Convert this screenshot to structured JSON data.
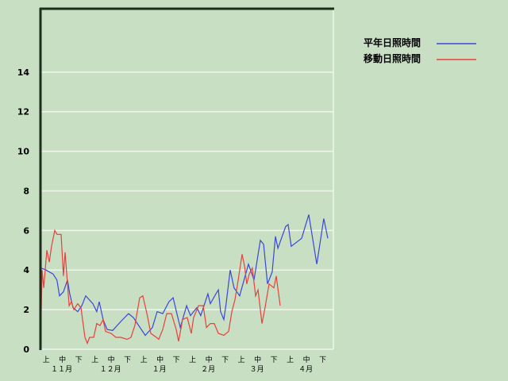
{
  "chart_data": {
    "type": "line",
    "title": "",
    "xlabel": "",
    "ylabel": "",
    "xlim": [
      0,
      18
    ],
    "ylim": [
      0,
      17.2
    ],
    "yticks": [
      0,
      2,
      4,
      6,
      8,
      10,
      12,
      14
    ],
    "grid": true,
    "legend_position": "top-right",
    "x_dekad_labels": [
      "上",
      "中",
      "下",
      "上",
      "中",
      "下",
      "上",
      "中",
      "下",
      "上",
      "中",
      "下",
      "上",
      "中",
      "下",
      "上",
      "中",
      "下"
    ],
    "x_month_labels": [
      "１１月",
      "１２月",
      "１月",
      "２月",
      "３月",
      "４月"
    ],
    "series": [
      {
        "name": "平年日照時間",
        "color": "#3a46d8",
        "x": [
          0.03,
          0.34,
          0.77,
          1.01,
          1.17,
          1.41,
          1.66,
          1.8,
          2.0,
          2.29,
          2.54,
          2.78,
          3.22,
          3.46,
          3.61,
          3.85,
          4.1,
          4.44,
          4.93,
          5.41,
          5.71,
          5.95,
          6.44,
          6.88,
          7.17,
          7.51,
          7.9,
          8.15,
          8.59,
          8.98,
          9.22,
          9.61,
          9.85,
          10.29,
          10.44,
          10.78,
          10.93,
          11.07,
          11.27,
          11.41,
          11.66,
          11.9,
          12.24,
          12.78,
          13.12,
          13.51,
          13.71,
          13.95,
          14.24,
          14.44,
          14.59,
          15.07,
          15.22,
          15.41,
          16.05,
          16.49,
          16.98,
          17.41,
          17.66
        ],
        "y": [
          4.1,
          4.0,
          3.8,
          3.5,
          2.7,
          2.9,
          3.5,
          2.8,
          2.1,
          1.9,
          2.2,
          2.7,
          2.3,
          1.9,
          2.4,
          1.5,
          1.0,
          0.95,
          1.4,
          1.8,
          1.6,
          1.3,
          0.7,
          1.1,
          1.9,
          1.8,
          2.4,
          2.6,
          1.1,
          2.2,
          1.7,
          2.1,
          1.7,
          2.8,
          2.3,
          2.8,
          3.0,
          1.9,
          1.5,
          2.3,
          4.0,
          3.1,
          2.7,
          4.3,
          3.5,
          5.5,
          5.3,
          3.3,
          3.9,
          5.7,
          5.1,
          6.2,
          6.3,
          5.2,
          5.6,
          6.8,
          4.3,
          6.6,
          5.6
        ]
      },
      {
        "name": "移動日照時間",
        "color": "#e8403a",
        "x": [
          0,
          0.1,
          0.2,
          0.39,
          0.54,
          0.68,
          0.88,
          1.02,
          1.27,
          1.41,
          1.51,
          1.76,
          1.9,
          2.05,
          2.29,
          2.49,
          2.73,
          2.88,
          3.02,
          3.27,
          3.46,
          3.66,
          3.85,
          4.0,
          4.34,
          4.63,
          4.93,
          5.32,
          5.56,
          5.8,
          6.1,
          6.29,
          6.54,
          6.78,
          7.12,
          7.27,
          7.51,
          7.76,
          8.05,
          8.34,
          8.49,
          8.73,
          9.02,
          9.27,
          9.41,
          9.71,
          10.0,
          10.2,
          10.44,
          10.68,
          10.93,
          11.27,
          11.56,
          11.76,
          11.95,
          12.15,
          12.39,
          12.54,
          12.68,
          12.83,
          13.02,
          13.22,
          13.37,
          13.61,
          13.8,
          14.05,
          14.34,
          14.49,
          14.73
        ],
        "y": [
          0,
          4.0,
          3.1,
          5.0,
          4.4,
          5.2,
          6.0,
          5.8,
          5.8,
          3.7,
          4.9,
          2.2,
          2.4,
          2.0,
          2.3,
          2.1,
          0.6,
          0.3,
          0.6,
          0.6,
          1.3,
          1.2,
          1.5,
          0.9,
          0.8,
          0.6,
          0.6,
          0.5,
          0.6,
          1.2,
          2.6,
          2.7,
          1.8,
          0.8,
          0.6,
          0.5,
          1.0,
          1.8,
          1.8,
          1.0,
          0.4,
          1.5,
          1.6,
          0.8,
          1.6,
          2.2,
          2.2,
          1.1,
          1.3,
          1.3,
          0.8,
          0.7,
          0.9,
          1.9,
          2.5,
          3.5,
          4.8,
          4.2,
          3.3,
          3.8,
          4.1,
          2.7,
          3.0,
          1.3,
          2.1,
          3.3,
          3.1,
          3.7,
          2.2
        ]
      }
    ]
  }
}
